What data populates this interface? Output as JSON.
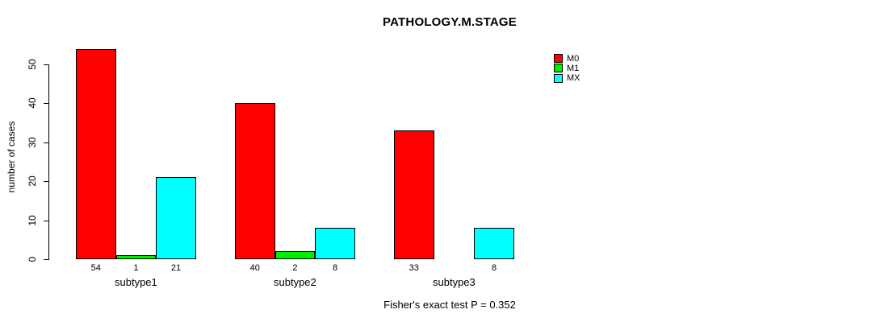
{
  "title": "PATHOLOGY.M.STAGE",
  "footnote": "Fisher's exact test P = 0.352",
  "chart_data": {
    "type": "bar",
    "grouped": true,
    "categories": [
      "subtype1",
      "subtype2",
      "subtype3"
    ],
    "series": [
      {
        "name": "M0",
        "color": "#FF0000",
        "values": [
          54,
          40,
          33
        ]
      },
      {
        "name": "M1",
        "color": "#00EE00",
        "values": [
          1,
          2,
          0
        ]
      },
      {
        "name": "MX",
        "color": "#00FFFF",
        "values": [
          21,
          8,
          8
        ]
      }
    ],
    "title": "PATHOLOGY.M.STAGE",
    "xlabel": "",
    "ylabel": "number of cases",
    "ylim": [
      0,
      50
    ],
    "yticks": [
      0,
      10,
      20,
      30,
      40,
      50
    ],
    "grid": false,
    "legend_position": "top-right",
    "bar_value_labels_shown": true,
    "zero_bars_omitted": true,
    "annotation": "Fisher's exact test P = 0.352"
  }
}
